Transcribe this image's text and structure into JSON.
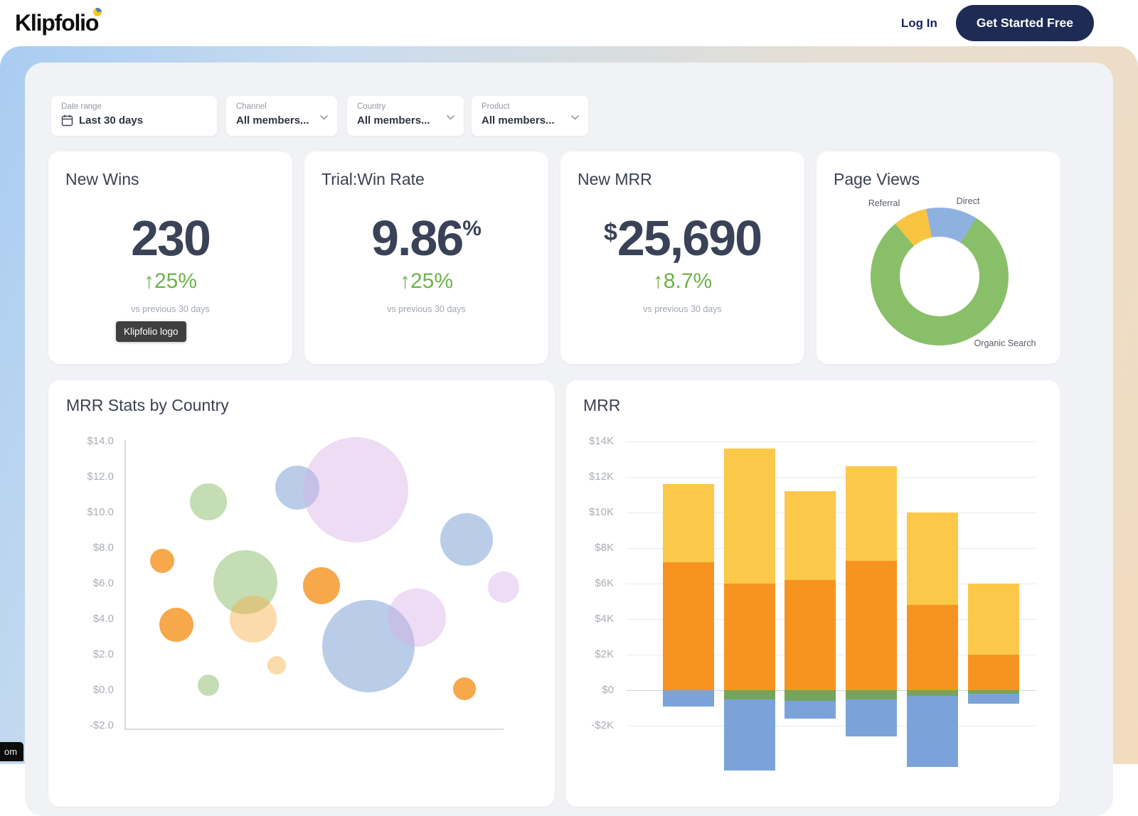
{
  "header": {
    "logo_text": "Klipfolio",
    "login_label": "Log In",
    "cta_label": "Get Started Free"
  },
  "filters": {
    "date_range": {
      "label": "Date range",
      "value": "Last 30 days"
    },
    "channel": {
      "label": "Channel",
      "value": "All members..."
    },
    "country": {
      "label": "Country",
      "value": "All members..."
    },
    "product": {
      "label": "Product",
      "value": "All members..."
    }
  },
  "kpis": [
    {
      "title": "New Wins",
      "prefix": "",
      "value": "230",
      "suffix": "",
      "delta": "↑25%",
      "note": "vs previous 30 days"
    },
    {
      "title": "Trial:Win Rate",
      "prefix": "",
      "value": "9.86",
      "suffix": "%",
      "delta": "↑25%",
      "note": "vs previous 30 days"
    },
    {
      "title": "New MRR",
      "prefix": "$",
      "value": "25,690",
      "suffix": "",
      "delta": "↑8.7%",
      "note": "vs previous 30 days"
    }
  ],
  "tooltip_text": "Klipfolio logo",
  "status_text": "om",
  "chart_data": [
    {
      "type": "pie",
      "title": "Page Views",
      "donut": true,
      "start_angle": -40,
      "segments": [
        {
          "label": "Referral",
          "value": 8,
          "color": "#f8c441"
        },
        {
          "label": "Direct",
          "value": 12,
          "color": "#8fb1e0"
        },
        {
          "label": "Organic Search",
          "value": 80,
          "color": "#8abf69"
        }
      ]
    },
    {
      "type": "scatter",
      "title": "MRR Stats by Country",
      "ylim": [
        -2,
        14
      ],
      "yticks": [
        14,
        12,
        10,
        8,
        6,
        4,
        2,
        0,
        -2
      ],
      "ytick_labels": [
        "$14.0",
        "$12.0",
        "$10.0",
        "$8.0",
        "$6.0",
        "$4.0",
        "$2.0",
        "$0.0",
        "-$2.0"
      ],
      "palette": {
        "green": "rgba(137,187,103,0.5)",
        "blue": "rgba(115,155,212,0.5)",
        "purple": "rgba(216,177,228,0.45)",
        "orange": "rgba(245,146,30,0.8)",
        "tan": "rgba(246,174,69,0.45)"
      },
      "points": [
        {
          "x": 0.221,
          "y": 10.6,
          "r": 26,
          "color": "green"
        },
        {
          "x": 0.456,
          "y": 11.4,
          "r": 31,
          "color": "blue"
        },
        {
          "x": 0.61,
          "y": 11.3,
          "r": 74,
          "color": "purple"
        },
        {
          "x": 0.099,
          "y": 7.3,
          "r": 17,
          "color": "orange"
        },
        {
          "x": 0.319,
          "y": 6.1,
          "r": 45,
          "color": "green"
        },
        {
          "x": 0.52,
          "y": 5.9,
          "r": 26,
          "color": "orange"
        },
        {
          "x": 0.902,
          "y": 8.5,
          "r": 37,
          "color": "blue"
        },
        {
          "x": 1.0,
          "y": 5.8,
          "r": 22,
          "color": "purple"
        },
        {
          "x": 0.137,
          "y": 3.7,
          "r": 24,
          "color": "orange"
        },
        {
          "x": 0.34,
          "y": 4.0,
          "r": 33,
          "color": "tan"
        },
        {
          "x": 0.643,
          "y": 2.5,
          "r": 65,
          "color": "blue"
        },
        {
          "x": 0.771,
          "y": 4.1,
          "r": 41,
          "color": "purple"
        },
        {
          "x": 0.401,
          "y": 1.4,
          "r": 13,
          "color": "tan"
        },
        {
          "x": 0.221,
          "y": 0.3,
          "r": 15,
          "color": "green"
        },
        {
          "x": 0.897,
          "y": 0.1,
          "r": 16,
          "color": "orange"
        }
      ]
    },
    {
      "type": "bar",
      "title": "MRR",
      "stacked": true,
      "ylim": [
        -2,
        14
      ],
      "yticks": [
        14,
        12,
        10,
        8,
        6,
        4,
        2,
        0,
        -2
      ],
      "ytick_labels": [
        "$14K",
        "$12K",
        "$10K",
        "$8K",
        "$6K",
        "$4K",
        "$2K",
        "$0",
        "-$2K"
      ],
      "categories": [
        "",
        "",
        "",
        "",
        "",
        ""
      ],
      "series": [
        {
          "name": "orange",
          "color": "#f79421",
          "values": [
            7.2,
            6.0,
            6.2,
            7.3,
            4.8,
            2.0
          ]
        },
        {
          "name": "yellow",
          "color": "#fcc84a",
          "values": [
            4.4,
            7.6,
            5.0,
            5.3,
            5.2,
            4.0
          ]
        },
        {
          "name": "green",
          "color": "#74a55c",
          "values": [
            0,
            -0.5,
            -0.6,
            -0.5,
            -0.3,
            -0.2
          ]
        },
        {
          "name": "blue",
          "color": "#7ba3d9",
          "values": [
            -0.9,
            -4.0,
            -1.0,
            -2.1,
            -4.0,
            -0.55
          ]
        }
      ]
    }
  ]
}
